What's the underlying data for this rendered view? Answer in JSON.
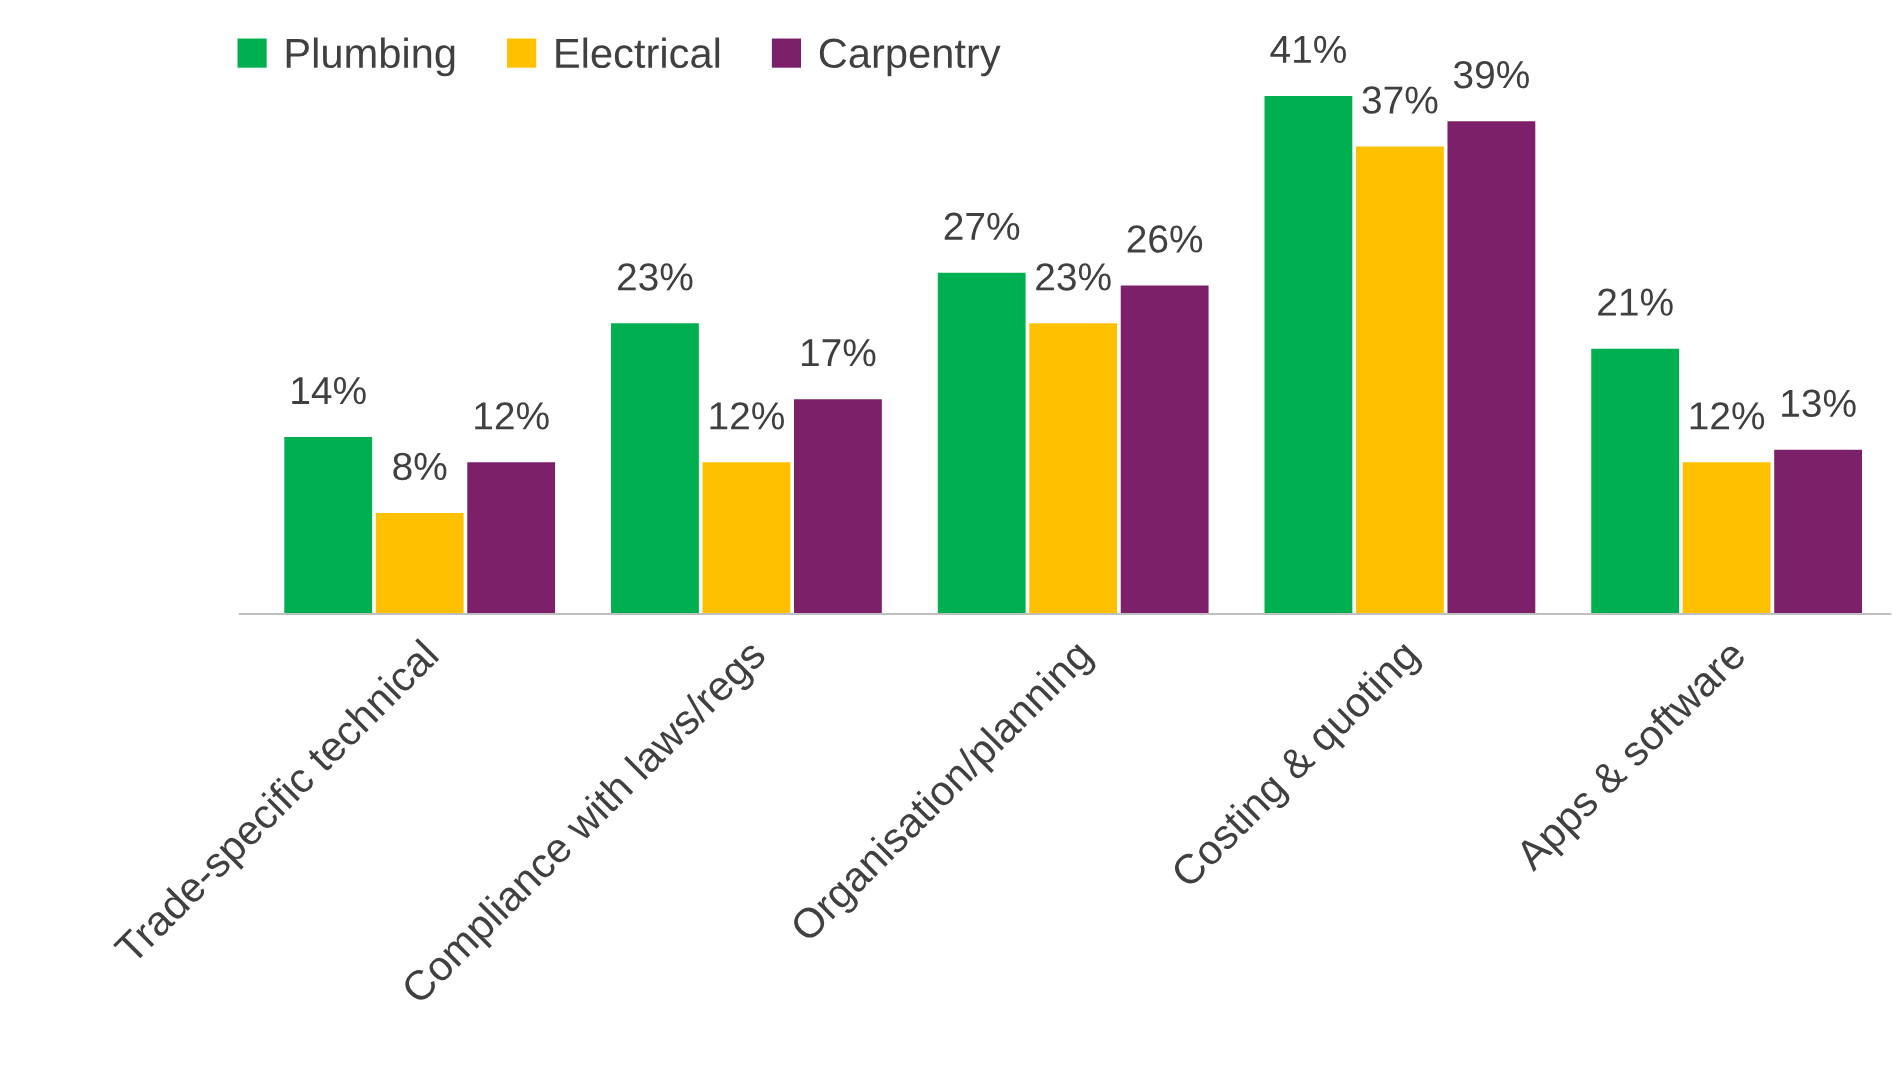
{
  "chart_data": {
    "type": "bar",
    "categories": [
      "Trade-specific technical",
      "Compliance with laws/regs",
      "Organisation/planning",
      "Costing & quoting",
      "Apps & software"
    ],
    "series": [
      {
        "name": "Plumbing",
        "color": "#00b050",
        "values": [
          14,
          23,
          27,
          41,
          21
        ],
        "value_labels": [
          "14%",
          "23%",
          "27%",
          "41%",
          "21%"
        ]
      },
      {
        "name": "Electrical",
        "color": "#ffc000",
        "values": [
          8,
          12,
          23,
          37,
          12
        ],
        "value_labels": [
          "8%",
          "12%",
          "23%",
          "37%",
          "12%"
        ]
      },
      {
        "name": "Carpentry",
        "color": "#7b2069",
        "values": [
          12,
          17,
          26,
          39,
          13
        ],
        "value_labels": [
          "12%",
          "17%",
          "26%",
          "39%",
          "13%"
        ]
      }
    ],
    "tick_labels": "x",
    "grid": false,
    "legend": "top left"
  }
}
